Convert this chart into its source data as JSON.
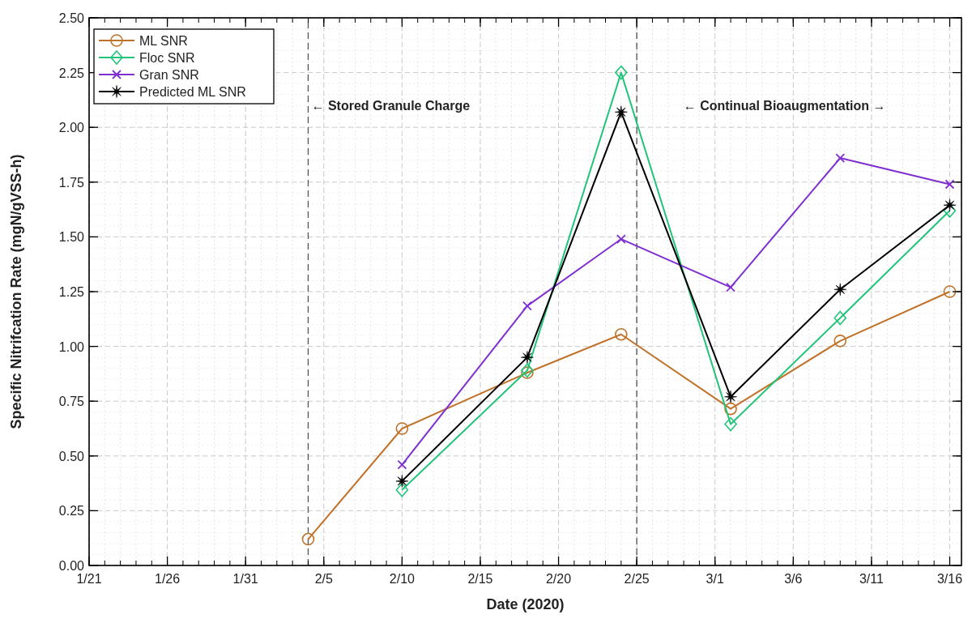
{
  "chart_data": {
    "type": "line",
    "xlabel": "Date (2020)",
    "ylabel": "Specific Nitrifcation Rate (mgN/gVSS-h)",
    "xlim": [
      "2020-01-21",
      "2020-03-16T18:00"
    ],
    "xticks": [
      {
        "value": "2020-01-21",
        "label": "1/21"
      },
      {
        "value": "2020-01-26",
        "label": "1/26"
      },
      {
        "value": "2020-01-31",
        "label": "1/31"
      },
      {
        "value": "2020-02-05",
        "label": "2/5"
      },
      {
        "value": "2020-02-10",
        "label": "2/10"
      },
      {
        "value": "2020-02-15",
        "label": "2/15"
      },
      {
        "value": "2020-02-20",
        "label": "2/20"
      },
      {
        "value": "2020-02-25",
        "label": "2/25"
      },
      {
        "value": "2020-03-01",
        "label": "3/1"
      },
      {
        "value": "2020-03-06",
        "label": "3/6"
      },
      {
        "value": "2020-03-11",
        "label": "3/11"
      },
      {
        "value": "2020-03-16",
        "label": "3/16"
      }
    ],
    "ylim": [
      0,
      2.5
    ],
    "yticks": [
      {
        "value": 0,
        "label": "0.00"
      },
      {
        "value": 0.25,
        "label": "0.25"
      },
      {
        "value": 0.5,
        "label": "0.50"
      },
      {
        "value": 0.75,
        "label": "0.75"
      },
      {
        "value": 1,
        "label": "1.00"
      },
      {
        "value": 1.25,
        "label": "1.25"
      },
      {
        "value": 1.5,
        "label": "1.50"
      },
      {
        "value": 1.75,
        "label": "1.75"
      },
      {
        "value": 2,
        "label": "2.00"
      },
      {
        "value": 2.25,
        "label": "2.25"
      },
      {
        "value": 2.5,
        "label": "2.50"
      }
    ],
    "grid": true,
    "legend": "top left",
    "line_style": "solid",
    "ref_lines": [
      {
        "axis": "x",
        "value": "2020-02-04",
        "color": "#555555",
        "line_style": "dashed"
      },
      {
        "axis": "x",
        "value": "2020-02-25",
        "color": "#555555",
        "line_style": "dashed"
      }
    ],
    "annotations": [
      "← Stored Granule Charge",
      "← Continual Bioaugmentation →"
    ],
    "series": [
      {
        "name": "ML SNR",
        "color": "#c0722a",
        "marker": "circle",
        "x": [
          "2020-02-04",
          "2020-02-10",
          "2020-02-18",
          "2020-02-24",
          "2020-03-02",
          "2020-03-09",
          "2020-03-16"
        ],
        "values": [
          0.12,
          0.625,
          0.88,
          1.055,
          0.715,
          1.025,
          1.25
        ]
      },
      {
        "name": "Floc SNR",
        "color": "#22c47a",
        "marker": "diamond",
        "x": [
          "2020-02-10",
          "2020-02-18",
          "2020-02-24",
          "2020-03-02",
          "2020-03-09",
          "2020-03-16"
        ],
        "values": [
          0.345,
          0.89,
          2.25,
          0.645,
          1.13,
          1.62
        ]
      },
      {
        "name": "Gran SNR",
        "color": "#7f2fd0",
        "marker": "cross",
        "x": [
          "2020-02-10",
          "2020-02-18",
          "2020-02-24",
          "2020-03-02",
          "2020-03-09",
          "2020-03-16"
        ],
        "values": [
          0.46,
          1.185,
          1.49,
          1.27,
          1.86,
          1.74
        ]
      },
      {
        "name": "Predicted ML SNR",
        "color": "#000000",
        "marker": "star",
        "x": [
          "2020-02-10",
          "2020-02-18",
          "2020-02-24",
          "2020-03-02",
          "2020-03-09",
          "2020-03-16"
        ],
        "values": [
          0.385,
          0.95,
          2.07,
          0.77,
          1.26,
          1.645
        ]
      }
    ]
  }
}
